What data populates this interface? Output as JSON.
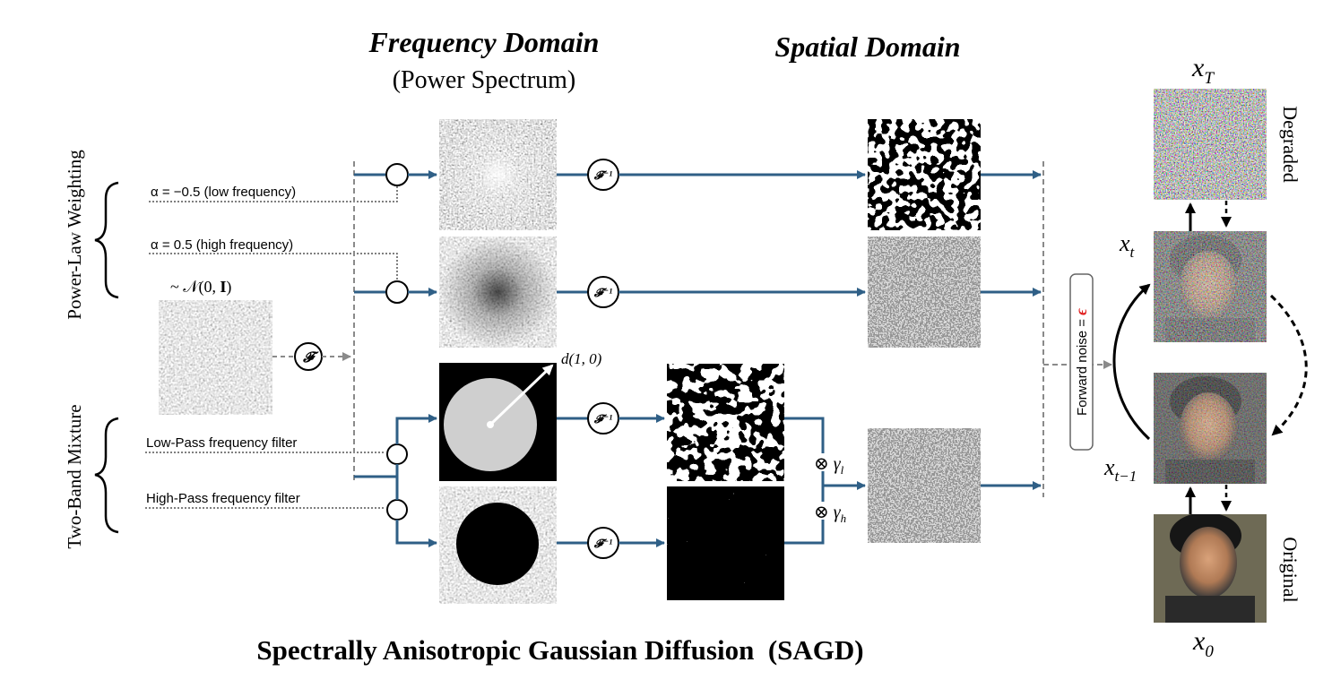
{
  "headers": {
    "frequency_domain": "Frequency Domain",
    "power_spectrum": "(Power Spectrum)",
    "spatial_domain": "Spatial Domain"
  },
  "left_labels": {
    "power_law": "Power-Law Weighting",
    "two_band": "Two-Band Mixture"
  },
  "inputs": {
    "alpha_low": "α = −0.5 (low frequency)",
    "alpha_high": "α = 0.5 (high frequency)",
    "gaussian": "~ 𝒩(0, 𝐈)",
    "low_pass": "Low-Pass frequency filter",
    "high_pass": "High-Pass frequency filter"
  },
  "operators": {
    "fourier": "𝓕",
    "inverse_fourier": "𝓕⁻¹",
    "radius": "d(1, 0)",
    "gamma_l": "⊗ γ",
    "gamma_l_sub": "l",
    "gamma_h": "⊗ γ",
    "gamma_h_sub": "h"
  },
  "forward_noise": {
    "label": "Forward noise = ",
    "symbol": "ϵ",
    "symbol_color": "#e02020"
  },
  "diffusion": {
    "x_T": "x",
    "x_T_sub": "T",
    "x_t": "x",
    "x_t_sub": "t",
    "x_tm1": "x",
    "x_tm1_sub": "t−1",
    "x_0": "x",
    "x_0_sub": "0",
    "degraded": "Degraded",
    "original": "Original"
  },
  "caption": "Spectrally Anisotropic Gaussian Diffusion  (SAGD)",
  "colors": {
    "arrow": "#2f5f86",
    "dashed": "#8a8a8a"
  }
}
